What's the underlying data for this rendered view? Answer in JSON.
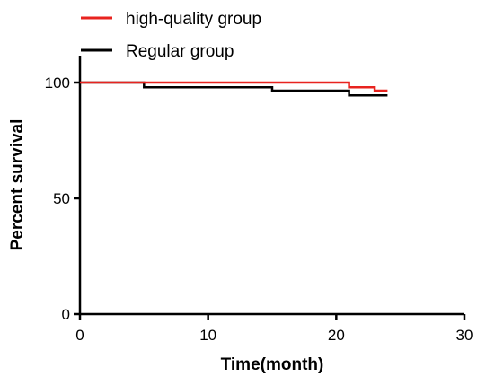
{
  "chart_data": {
    "type": "line",
    "step": true,
    "xlabel": "Time(month)",
    "ylabel": "Percent survival",
    "xlim": [
      0,
      30
    ],
    "ylim": [
      0,
      100
    ],
    "xticks": [
      "0",
      "10",
      "20",
      "30"
    ],
    "yticks": [
      "0",
      "50",
      "100"
    ],
    "grid": false,
    "legend_position": "top-left",
    "series": [
      {
        "name": "high-quality  group",
        "color": "#e8231f",
        "x": [
          0,
          21,
          21,
          23,
          23,
          24
        ],
        "y": [
          100,
          100,
          98,
          98,
          96.5,
          96.5
        ]
      },
      {
        "name": "Regular group",
        "color": "#000000",
        "x": [
          0,
          5,
          5,
          15,
          15,
          21,
          21,
          24
        ],
        "y": [
          100,
          100,
          98,
          98,
          96.5,
          96.5,
          94.5,
          94.5
        ]
      }
    ]
  }
}
